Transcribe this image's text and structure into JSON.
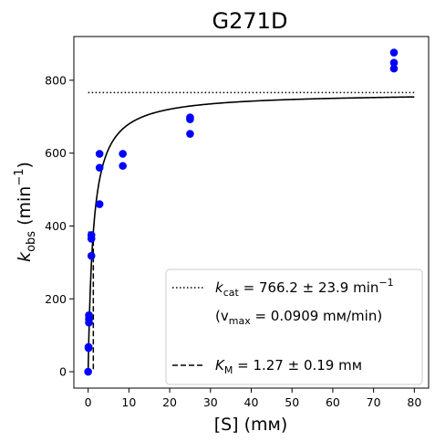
{
  "chart_data": {
    "type": "scatter",
    "title": "G271D",
    "xlabel": "[S] (mм)",
    "ylabel": "k_obs (min⁻¹)",
    "xlim": [
      -3.5,
      83.5
    ],
    "ylim": [
      -45,
      920
    ],
    "x_ticks": [
      0,
      10,
      20,
      30,
      40,
      50,
      60,
      70,
      80
    ],
    "y_ticks": [
      0,
      200,
      400,
      600,
      800
    ],
    "grid": false,
    "legend_position": "lower right",
    "points": [
      {
        "x": 0,
        "y": 0
      },
      {
        "x": 0.1,
        "y": 65
      },
      {
        "x": 0.1,
        "y": 68
      },
      {
        "x": 0.2,
        "y": 135
      },
      {
        "x": 0.2,
        "y": 145
      },
      {
        "x": 0.2,
        "y": 155
      },
      {
        "x": 0.8,
        "y": 318
      },
      {
        "x": 0.8,
        "y": 365
      },
      {
        "x": 0.8,
        "y": 375
      },
      {
        "x": 2.8,
        "y": 460
      },
      {
        "x": 2.8,
        "y": 560
      },
      {
        "x": 2.8,
        "y": 598
      },
      {
        "x": 8.5,
        "y": 565
      },
      {
        "x": 8.5,
        "y": 598
      },
      {
        "x": 25,
        "y": 653
      },
      {
        "x": 25,
        "y": 693
      },
      {
        "x": 25,
        "y": 698
      },
      {
        "x": 75,
        "y": 832
      },
      {
        "x": 75,
        "y": 848
      },
      {
        "x": 75,
        "y": 876
      }
    ],
    "fit": {
      "kcat": 766.2,
      "km": 1.27,
      "x_range": [
        0,
        80
      ]
    },
    "legend": {
      "kcat_prefix": "k",
      "kcat_sub": "cat",
      "kcat_text": " = 766.2 ± 23.9 min",
      "kcat_sup": "−1",
      "vmax_open": "(v",
      "vmax_sub": "max",
      "vmax_text": " = 0.0909 mм/min)",
      "km_prefix": "K",
      "km_sub": "M",
      "km_text": " = 1.27 ± 0.19 mм"
    },
    "ylabel_parts": {
      "base": "k",
      "sub": "obs",
      "unit_open": " (min",
      "unit_sup": "−1",
      "unit_close": ")"
    },
    "colors": {
      "points": "#0000ff",
      "fit_line": "#000000",
      "kcat_line": "#000000",
      "km_line": "#000000"
    }
  }
}
